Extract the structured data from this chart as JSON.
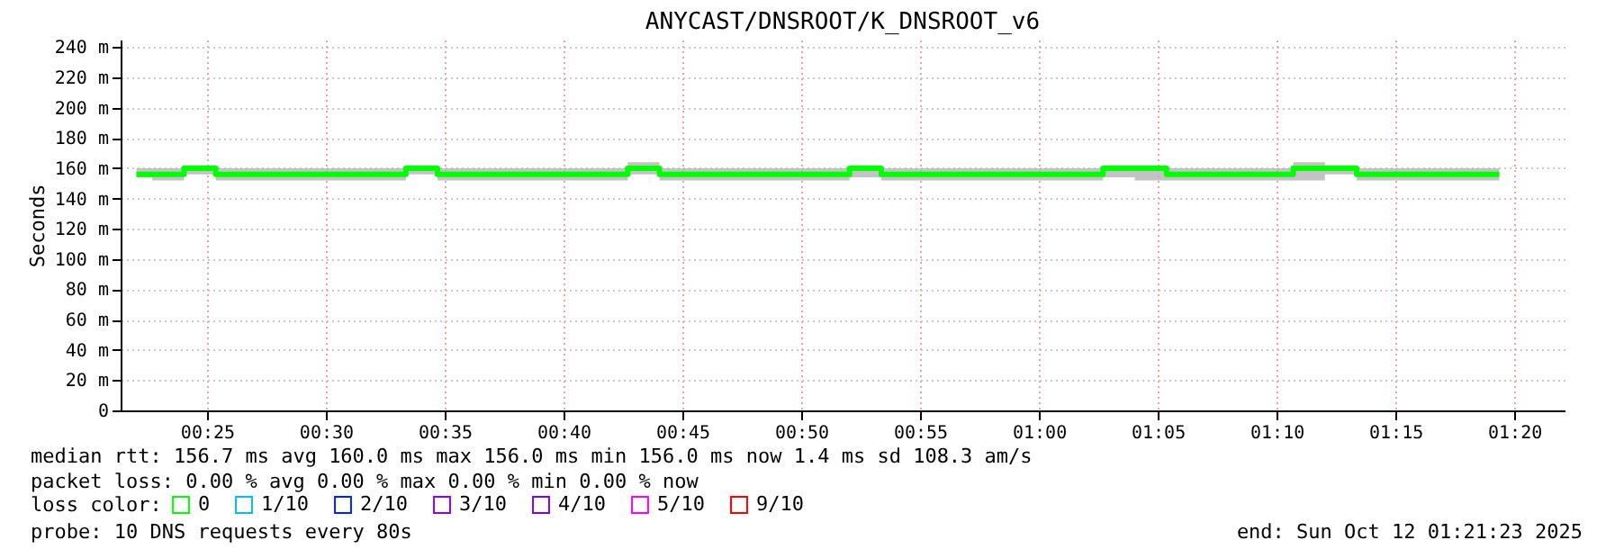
{
  "chart_data": {
    "type": "step",
    "title": "ANYCAST/DNSROOT/K_DNSROOT_v6",
    "ylabel": "Seconds",
    "x": [
      0.3672,
      0.3894,
      0.4117,
      0.4339,
      0.4561,
      0.4783,
      0.5006,
      0.5228,
      0.545,
      0.5672,
      0.5894,
      0.6117,
      0.6339,
      0.6561,
      0.6783,
      0.7006,
      0.7228,
      0.745,
      0.7672,
      0.7894,
      0.8117,
      0.8339,
      0.8561,
      0.8783,
      0.9006,
      0.9228,
      0.945,
      0.9672,
      0.9894,
      1.0117,
      1.0339,
      1.0561,
      1.0783,
      1.1006,
      1.1228,
      1.145,
      1.1672,
      1.1894,
      1.2117,
      1.2339,
      1.2561,
      1.2783,
      1.3006,
      1.3228
    ],
    "series": [
      {
        "name": "0",
        "color": "#00ff00",
        "values": [
          156,
          156,
          160,
          156,
          156,
          156,
          156,
          156,
          156,
          160,
          156,
          156,
          156,
          156,
          156,
          156,
          160,
          156,
          156,
          156,
          156,
          156,
          156,
          160,
          156,
          156,
          156,
          156,
          156,
          156,
          156,
          160,
          160,
          156,
          156,
          156,
          156,
          160,
          160,
          156,
          156,
          156,
          156,
          156
        ],
        "lower": [
          154,
          152,
          156,
          152,
          152,
          152,
          152,
          152,
          152,
          156,
          152,
          152,
          152,
          152,
          152,
          152,
          156,
          152,
          152,
          152,
          152,
          152,
          152,
          154,
          152,
          152,
          152,
          152,
          152,
          152,
          152,
          154,
          152,
          152,
          152,
          152,
          152,
          152,
          156,
          152,
          152,
          152,
          152,
          152
        ],
        "upper": [
          160,
          160,
          162,
          160,
          160,
          160,
          160,
          160,
          160,
          162,
          160,
          160,
          160,
          160,
          160,
          160,
          164,
          160,
          160,
          160,
          160,
          160,
          160,
          162,
          160,
          160,
          160,
          160,
          160,
          160,
          160,
          162,
          162,
          160,
          160,
          160,
          160,
          164,
          162,
          160,
          160,
          160,
          160,
          160
        ]
      },
      {
        "name": "1/10",
        "color": "#00bbff",
        "values": [
          null,
          null,
          null,
          null,
          null,
          null,
          null,
          null,
          null,
          null,
          null,
          null,
          null,
          null,
          null,
          null,
          null,
          null,
          null,
          null,
          null,
          null,
          null,
          null,
          null,
          null,
          null,
          null,
          null,
          null,
          null,
          null,
          null,
          null,
          null,
          null,
          null,
          null,
          null,
          null,
          null,
          null,
          null,
          null
        ]
      },
      {
        "name": "2/10",
        "color": "#0022ff",
        "values": [
          null,
          null,
          null,
          null,
          null,
          null,
          null,
          null,
          null,
          null,
          null,
          null,
          null,
          null,
          null,
          null,
          null,
          null,
          null,
          null,
          null,
          null,
          null,
          null,
          null,
          null,
          null,
          null,
          null,
          null,
          null,
          null,
          null,
          null,
          null,
          null,
          null,
          null,
          null,
          null,
          null,
          null,
          null,
          null
        ]
      },
      {
        "name": "3/10",
        "color": "#8800ff",
        "values": [
          null,
          null,
          null,
          null,
          null,
          null,
          null,
          null,
          null,
          null,
          null,
          null,
          null,
          null,
          null,
          null,
          null,
          null,
          null,
          null,
          null,
          null,
          null,
          null,
          null,
          null,
          null,
          null,
          null,
          null,
          null,
          null,
          null,
          null,
          null,
          null,
          null,
          null,
          null,
          null,
          null,
          null,
          null,
          null
        ]
      },
      {
        "name": "4/10",
        "color": "#7700ff",
        "values": [
          null,
          null,
          null,
          null,
          null,
          null,
          null,
          null,
          null,
          null,
          null,
          null,
          null,
          null,
          null,
          null,
          null,
          null,
          null,
          null,
          null,
          null,
          null,
          null,
          null,
          null,
          null,
          null,
          null,
          null,
          null,
          null,
          null,
          null,
          null,
          null,
          null,
          null,
          null,
          null,
          null,
          null,
          null,
          null
        ]
      },
      {
        "name": "5/10",
        "color": "#ff00ff",
        "values": [
          null,
          null,
          null,
          null,
          null,
          null,
          null,
          null,
          null,
          null,
          null,
          null,
          null,
          null,
          null,
          null,
          null,
          null,
          null,
          null,
          null,
          null,
          null,
          null,
          null,
          null,
          null,
          null,
          null,
          null,
          null,
          null,
          null,
          null,
          null,
          null,
          null,
          null,
          null,
          null,
          null,
          null,
          null,
          null
        ]
      },
      {
        "name": "9/10",
        "color": "#ff0000",
        "values": [
          null,
          null,
          null,
          null,
          null,
          null,
          null,
          null,
          null,
          null,
          null,
          null,
          null,
          null,
          null,
          null,
          null,
          null,
          null,
          null,
          null,
          null,
          null,
          null,
          null,
          null,
          null,
          null,
          null,
          null,
          null,
          null,
          null,
          null,
          null,
          null,
          null,
          null,
          null,
          null,
          null,
          null,
          null,
          null
        ]
      }
    ],
    "legend": "bottom",
    "legend_title": "loss color:",
    "xlim": [
      0.3561,
      1.3686
    ],
    "xticks": [
      {
        "value": 0.41667,
        "label": "00:25"
      },
      {
        "value": 0.5,
        "label": "00:30"
      },
      {
        "value": 0.58333,
        "label": "00:35"
      },
      {
        "value": 0.66667,
        "label": "00:40"
      },
      {
        "value": 0.75,
        "label": "00:45"
      },
      {
        "value": 0.83333,
        "label": "00:50"
      },
      {
        "value": 0.91667,
        "label": "00:55"
      },
      {
        "value": 1.0,
        "label": "01:00"
      },
      {
        "value": 1.08333,
        "label": "01:05"
      },
      {
        "value": 1.16667,
        "label": "01:10"
      },
      {
        "value": 1.25,
        "label": "01:15"
      },
      {
        "value": 1.33333,
        "label": "01:20"
      }
    ],
    "ylim": [
      0,
      245
    ],
    "yticks": [
      0,
      {
        "value": 20,
        "label": "20 m"
      },
      {
        "value": 40,
        "label": "40 m"
      },
      {
        "value": 60,
        "label": "60 m"
      },
      {
        "value": 80,
        "label": "80 m"
      },
      {
        "value": 100,
        "label": "100 m"
      },
      {
        "value": 120,
        "label": "120 m"
      },
      {
        "value": 140,
        "label": "140 m"
      },
      {
        "value": 160,
        "label": "160 m"
      },
      {
        "value": 180,
        "label": "180 m"
      },
      {
        "value": 200,
        "label": "200 m"
      },
      {
        "value": 220,
        "label": "220 m"
      },
      {
        "value": 240,
        "label": "240 m"
      }
    ],
    "grid": true,
    "marker": "none",
    "line_style": "solid",
    "annotations": [
      "median rtt:  156.7 ms avg  160.0 ms max  156.0 ms min  156.0 ms now  1.4 ms sd  108.3   am/s",
      "packet loss: 0.00 % avg  0.00 % max  0.00 % min  0.00 % now",
      "probe:       10 DNS requests every 80s",
      "end: Sun Oct 12 01:21:23 2025"
    ]
  }
}
